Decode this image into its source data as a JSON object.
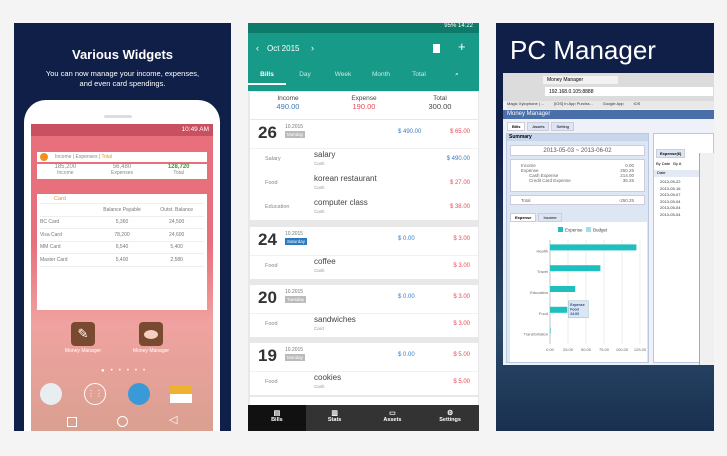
{
  "widgets_panel": {
    "title": "Various Widgets",
    "subtitle_line1": "You can now manage your income, expenses,",
    "subtitle_line2": "and even card spendings.",
    "status_time": "10:49 AM",
    "summary_widget": {
      "tabs": [
        "Income",
        "Expenses",
        "Total"
      ],
      "values": [
        "185,200",
        "56,480",
        "128,720"
      ],
      "labels": [
        "Income",
        "Expenses",
        "Total"
      ]
    },
    "card_widget": {
      "title": "Card",
      "headers": [
        "",
        "Balance Payable",
        "Outst. Balance"
      ],
      "rows": [
        [
          "BC Card",
          "5,360",
          "24,500"
        ],
        [
          "Visa Card",
          "78,200",
          "24,600"
        ],
        [
          "MM Card",
          "6,540",
          "5,400"
        ],
        [
          "Master Card",
          "5,400",
          "2,580"
        ]
      ]
    },
    "app_icons": [
      {
        "label": "Money Manager",
        "icon": "pencil-icon"
      },
      {
        "label": "Money Manager",
        "icon": "piggy-bank-icon"
      }
    ],
    "dock": [
      "contacts-icon",
      "apps-icon",
      "browser-globe-icon",
      "email-icon"
    ]
  },
  "bills_panel": {
    "status": {
      "battery": "95%",
      "time": "14:22"
    },
    "month": "Oct 2015",
    "tabs": [
      "Bills",
      "Day",
      "Week",
      "Month",
      "Total"
    ],
    "summary": {
      "income_label": "Income",
      "income": "490.00",
      "expense_label": "Expense",
      "expense": "190.00",
      "total_label": "Total",
      "total": "300.00"
    },
    "days": [
      {
        "day": "26",
        "month": "10.2015",
        "weekday": "Monday",
        "income": "$ 490.00",
        "expense": "$ 65.00",
        "items": [
          {
            "category": "Salary",
            "name": "salary",
            "account": "Cash",
            "amount": "$ 490.00",
            "type": "income"
          },
          {
            "category": "Food",
            "name": "korean restaurant",
            "account": "Cash",
            "amount": "$ 27.00",
            "type": "expense"
          },
          {
            "category": "Education",
            "name": "computer class",
            "account": "Cash",
            "amount": "$ 38.00",
            "type": "expense"
          }
        ]
      },
      {
        "day": "24",
        "month": "10.2015",
        "weekday": "Saturday",
        "income": "$ 0.00",
        "expense": "$ 3.00",
        "items": [
          {
            "category": "Food",
            "name": "coffee",
            "account": "Cash",
            "amount": "$ 3.00",
            "type": "expense"
          }
        ]
      },
      {
        "day": "20",
        "month": "10.2015",
        "weekday": "Tuesday",
        "income": "$ 0.00",
        "expense": "$ 3.00",
        "items": [
          {
            "category": "Food",
            "name": "sandwiches",
            "account": "Card",
            "amount": "$ 3.00",
            "type": "expense"
          }
        ]
      },
      {
        "day": "19",
        "month": "10.2015",
        "weekday": "Monday",
        "income": "$ 0.00",
        "expense": "$ 5.00",
        "items": [
          {
            "category": "Food",
            "name": "cookies",
            "account": "Cash",
            "amount": "$ 5.00",
            "type": "expense"
          }
        ]
      }
    ],
    "bottom_nav": [
      "Bills",
      "Stats",
      "Assets",
      "Settings"
    ]
  },
  "pc_panel": {
    "title": "PC Manager",
    "browser_tab": "Money Manager",
    "url": "192.168.0.105:8888",
    "bookmarks": [
      "Magic Xylophone | ...",
      "[iOS] In App Purcha...",
      "Google App",
      "iOS"
    ],
    "app_title": "Money Manager",
    "app_tabs": [
      "Bills",
      "Assets",
      "Setting"
    ],
    "summary_title": "Summary",
    "date_range": "2013-05-03  ~  2013-06-02",
    "rows": [
      [
        "Income",
        "0.00"
      ],
      [
        "Expense",
        "250.25"
      ],
      [
        "Cash Expense",
        "214.00"
      ],
      [
        "Credit Card Expense",
        "36.25"
      ]
    ],
    "total": [
      "Total",
      "-250.25"
    ],
    "chart_tabs": [
      "Expense",
      "Income"
    ],
    "right_tab": "Expense(6)",
    "right_filters": [
      "By Date",
      "By A"
    ],
    "right_col": "Date",
    "dates": [
      "2013-05-22",
      "2013-05-16",
      "2013-05-07",
      "2013-05-04",
      "2013-05-04",
      "2013-05-04"
    ]
  },
  "chart_data": {
    "type": "bar",
    "orientation": "horizontal",
    "categories": [
      "Health",
      "Travel",
      "Education",
      "Food",
      "Transfortation"
    ],
    "series": [
      {
        "name": "Expense",
        "values": [
          120,
          70,
          35,
          24,
          0.5
        ],
        "color": "#1fbfbf"
      },
      {
        "name": "Budget",
        "values": [
          0,
          0,
          0,
          0,
          0
        ],
        "color": "#9fe0e8"
      }
    ],
    "xlim": [
      0,
      125
    ],
    "xticks": [
      "0.00",
      "25.00",
      "50.00",
      "75.00",
      "100.00",
      "125.00"
    ],
    "tooltip": [
      "Expense",
      "Food",
      "24.00"
    ],
    "legend": "top"
  },
  "colors": {
    "teal": "#189a88",
    "navy": "#0f1f48",
    "income": "#3a7cc0",
    "expense": "#e84a5a",
    "widget_pink": "#e8707c"
  }
}
